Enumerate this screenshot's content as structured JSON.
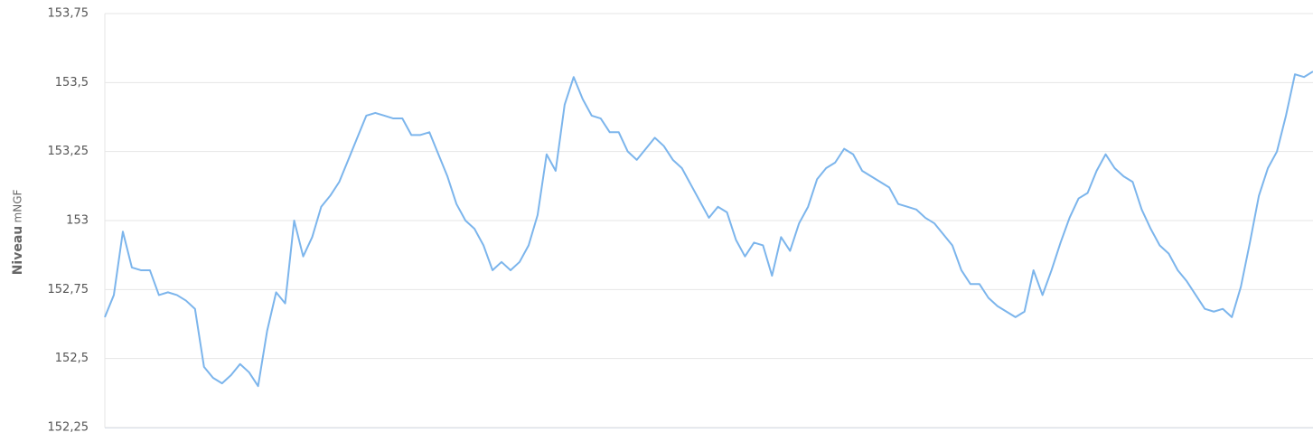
{
  "chart_data": {
    "type": "line",
    "ylabel": "Niveau",
    "yunit": "mNGF",
    "categories": [
      null,
      null,
      null,
      null,
      null,
      null,
      null,
      null,
      null,
      null,
      null,
      null,
      null,
      null,
      null,
      null,
      null,
      null,
      null,
      null,
      null,
      null,
      null,
      null,
      null,
      null,
      null,
      null,
      null,
      null,
      null,
      null,
      null,
      null,
      null,
      null,
      null,
      null,
      null,
      null,
      null,
      null,
      null,
      null,
      null,
      null,
      null,
      null,
      null,
      null,
      null,
      null,
      null,
      null,
      null,
      null,
      null,
      null,
      null,
      null,
      null,
      null,
      null,
      null,
      null,
      null,
      null,
      null,
      null,
      null,
      null,
      null,
      null,
      null,
      null,
      null,
      null,
      null,
      null,
      null,
      null,
      null,
      null,
      null,
      null,
      null,
      null,
      null,
      null,
      null,
      null,
      null,
      null,
      null,
      null,
      null,
      null,
      null,
      null,
      null,
      null,
      null,
      null,
      null,
      null,
      null,
      null,
      null,
      null,
      null,
      null,
      null,
      null,
      null,
      null,
      null,
      null,
      null,
      null,
      null,
      null,
      null,
      null,
      null,
      null,
      null,
      null,
      null,
      null,
      null,
      null,
      null,
      null,
      null,
      null
    ],
    "series": [
      {
        "name": "Niveau",
        "color": "#7cb5ec",
        "values": [
          152.65,
          152.73,
          152.96,
          152.83,
          152.82,
          152.82,
          152.73,
          152.74,
          152.73,
          152.71,
          152.68,
          152.47,
          152.43,
          152.41,
          152.44,
          152.48,
          152.45,
          152.4,
          152.6,
          152.74,
          152.7,
          153.0,
          152.87,
          152.94,
          153.05,
          153.09,
          153.14,
          153.22,
          153.3,
          153.38,
          153.39,
          153.38,
          153.37,
          153.37,
          153.31,
          153.31,
          153.32,
          153.24,
          153.16,
          153.06,
          153.0,
          152.97,
          152.91,
          152.82,
          152.85,
          152.82,
          152.85,
          152.91,
          153.02,
          153.24,
          153.18,
          153.42,
          153.52,
          153.44,
          153.38,
          153.37,
          153.32,
          153.32,
          153.25,
          153.22,
          153.26,
          153.3,
          153.27,
          153.22,
          153.19,
          153.13,
          153.07,
          153.01,
          153.05,
          153.03,
          152.93,
          152.87,
          152.92,
          152.91,
          152.8,
          152.94,
          152.89,
          152.99,
          153.05,
          153.15,
          153.19,
          153.21,
          153.26,
          153.24,
          153.18,
          153.16,
          153.14,
          153.12,
          153.06,
          153.05,
          153.04,
          153.01,
          152.99,
          152.95,
          152.91,
          152.82,
          152.77,
          152.77,
          152.72,
          152.69,
          152.67,
          152.65,
          152.67,
          152.82,
          152.73,
          152.82,
          152.92,
          153.01,
          153.08,
          153.1,
          153.18,
          153.24,
          153.19,
          153.16,
          153.14,
          153.04,
          152.97,
          152.91,
          152.88,
          152.82,
          152.78,
          152.73,
          152.68,
          152.67,
          152.68,
          152.65,
          152.76,
          152.92,
          153.09,
          153.19,
          153.25,
          153.38,
          153.53,
          153.52,
          153.54
        ]
      }
    ],
    "ylim": [
      152.25,
      153.75
    ],
    "yticks": [
      {
        "value": 152.25,
        "label": "152,25"
      },
      {
        "value": 152.5,
        "label": "152,5"
      },
      {
        "value": 152.75,
        "label": "152,75"
      },
      153,
      {
        "value": 153.25,
        "label": "153,25"
      },
      {
        "value": 153.5,
        "label": "153,5"
      },
      {
        "value": 153.75,
        "label": "153,75"
      }
    ],
    "grid": true
  }
}
